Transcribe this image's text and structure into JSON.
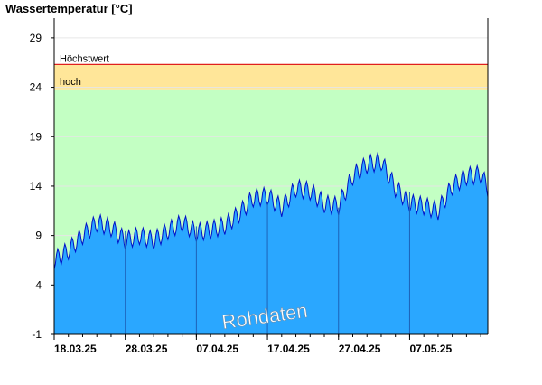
{
  "chart_data": {
    "type": "area",
    "title": "Wassertemperatur [°C]",
    "xlabel": "",
    "ylabel": "",
    "ylim": [
      -1,
      31
    ],
    "yticks": [
      "29",
      "24",
      "19",
      "14",
      "9",
      "4",
      "-1"
    ],
    "ytick_values": [
      29,
      24,
      19,
      14,
      9,
      4,
      -1
    ],
    "x_start": "2025-03-18",
    "x_end": "2025-05-18",
    "xticks": [
      {
        "label": "18.03.25",
        "date": "2025-03-18"
      },
      {
        "label": "28.03.25",
        "date": "2025-03-28"
      },
      {
        "label": "07.04.25",
        "date": "2025-04-07"
      },
      {
        "label": "17.04.25",
        "date": "2025-04-17"
      },
      {
        "label": "27.04.25",
        "date": "2025-04-27"
      },
      {
        "label": "07.05.25",
        "date": "2025-05-07"
      }
    ],
    "bands": [
      {
        "label": "hoch",
        "from": 23.7,
        "to": 26.3,
        "color": "#ffe699"
      },
      {
        "label": "",
        "from": -1,
        "to": 23.7,
        "color": "#c3ffc3"
      }
    ],
    "threshold_line": {
      "label": "Höchstwert",
      "value": 26.3,
      "color": "#e0201e"
    },
    "series": [
      {
        "values": [
          {
            "x": "2025-03-18",
            "y": 6.5
          },
          {
            "x": "2025-03-20",
            "y": 7.5
          },
          {
            "x": "2025-03-22",
            "y": 9.0
          },
          {
            "x": "2025-03-24",
            "y": 10.3
          },
          {
            "x": "2025-03-26",
            "y": 9.8
          },
          {
            "x": "2025-03-28",
            "y": 8.5
          },
          {
            "x": "2025-03-30",
            "y": 9.0
          },
          {
            "x": "2025-04-01",
            "y": 8.5
          },
          {
            "x": "2025-04-03",
            "y": 9.5
          },
          {
            "x": "2025-04-05",
            "y": 10.3
          },
          {
            "x": "2025-04-07",
            "y": 9.3
          },
          {
            "x": "2025-04-09",
            "y": 9.6
          },
          {
            "x": "2025-04-11",
            "y": 10.0
          },
          {
            "x": "2025-04-13",
            "y": 11.2
          },
          {
            "x": "2025-04-15",
            "y": 12.8
          },
          {
            "x": "2025-04-17",
            "y": 13.0
          },
          {
            "x": "2025-04-19",
            "y": 11.8
          },
          {
            "x": "2025-04-21",
            "y": 13.8
          },
          {
            "x": "2025-04-23",
            "y": 13.5
          },
          {
            "x": "2025-04-25",
            "y": 12.2
          },
          {
            "x": "2025-04-27",
            "y": 12.0
          },
          {
            "x": "2025-04-29",
            "y": 15.0
          },
          {
            "x": "2025-05-01",
            "y": 16.2
          },
          {
            "x": "2025-05-03",
            "y": 16.5
          },
          {
            "x": "2025-05-05",
            "y": 13.8
          },
          {
            "x": "2025-05-07",
            "y": 12.3
          },
          {
            "x": "2025-05-09",
            "y": 12.0
          },
          {
            "x": "2025-05-11",
            "y": 11.5
          },
          {
            "x": "2025-05-13",
            "y": 14.0
          },
          {
            "x": "2025-05-15",
            "y": 15.0
          },
          {
            "x": "2025-05-17",
            "y": 15.2
          },
          {
            "x": "2025-05-18",
            "y": 13.8
          }
        ],
        "daily_amplitude": 0.9,
        "fill_color": "#2aa7ff",
        "line_color": "#0010c8"
      }
    ],
    "grid": true,
    "annotations": [
      "Rohdaten"
    ]
  }
}
